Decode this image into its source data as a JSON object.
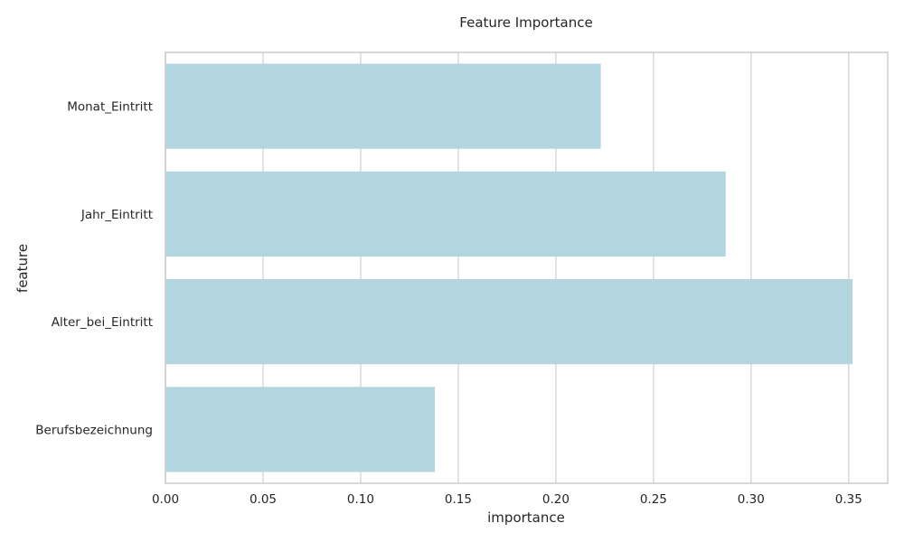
{
  "chart_data": {
    "type": "bar",
    "orientation": "horizontal",
    "title": "Feature Importance",
    "xlabel": "importance",
    "ylabel": "feature",
    "categories": [
      "Monat_Eintritt",
      "Jahr_Eintritt",
      "Alter_bei_Eintritt",
      "Berufsbezeichnung"
    ],
    "values": [
      0.223,
      0.287,
      0.352,
      0.138
    ],
    "xlim": [
      0,
      0.37
    ],
    "xticks": [
      "0.00",
      "0.05",
      "0.10",
      "0.15",
      "0.20",
      "0.25",
      "0.30",
      "0.35"
    ],
    "grid": true,
    "bar_color": "#b3d5e0",
    "grid_color": "#d9d9d9",
    "spine_color": "#cccccc"
  }
}
